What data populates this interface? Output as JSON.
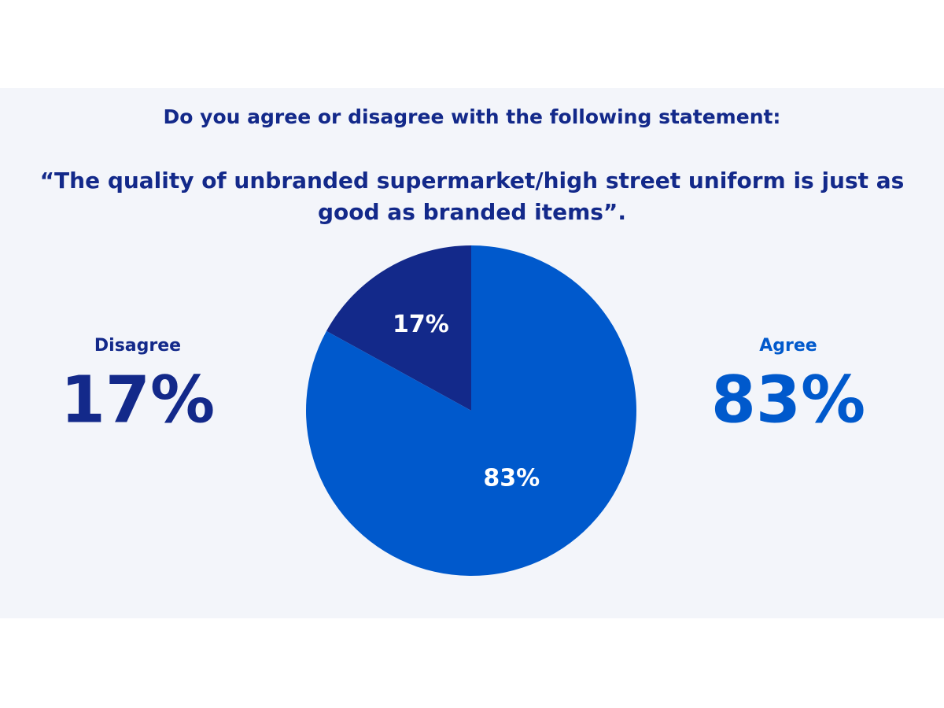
{
  "chart_data": {
    "type": "pie",
    "title": "Do you agree or disagree with the following statement:",
    "subtitle": "“The quality of unbranded supermarket/high street uniform is just as good as branded items”.",
    "categories": [
      "Disagree",
      "Agree"
    ],
    "values": [
      17,
      83
    ],
    "value_labels": [
      "17%",
      "83%"
    ],
    "colors": [
      "#13298a",
      "#0059cc"
    ]
  }
}
